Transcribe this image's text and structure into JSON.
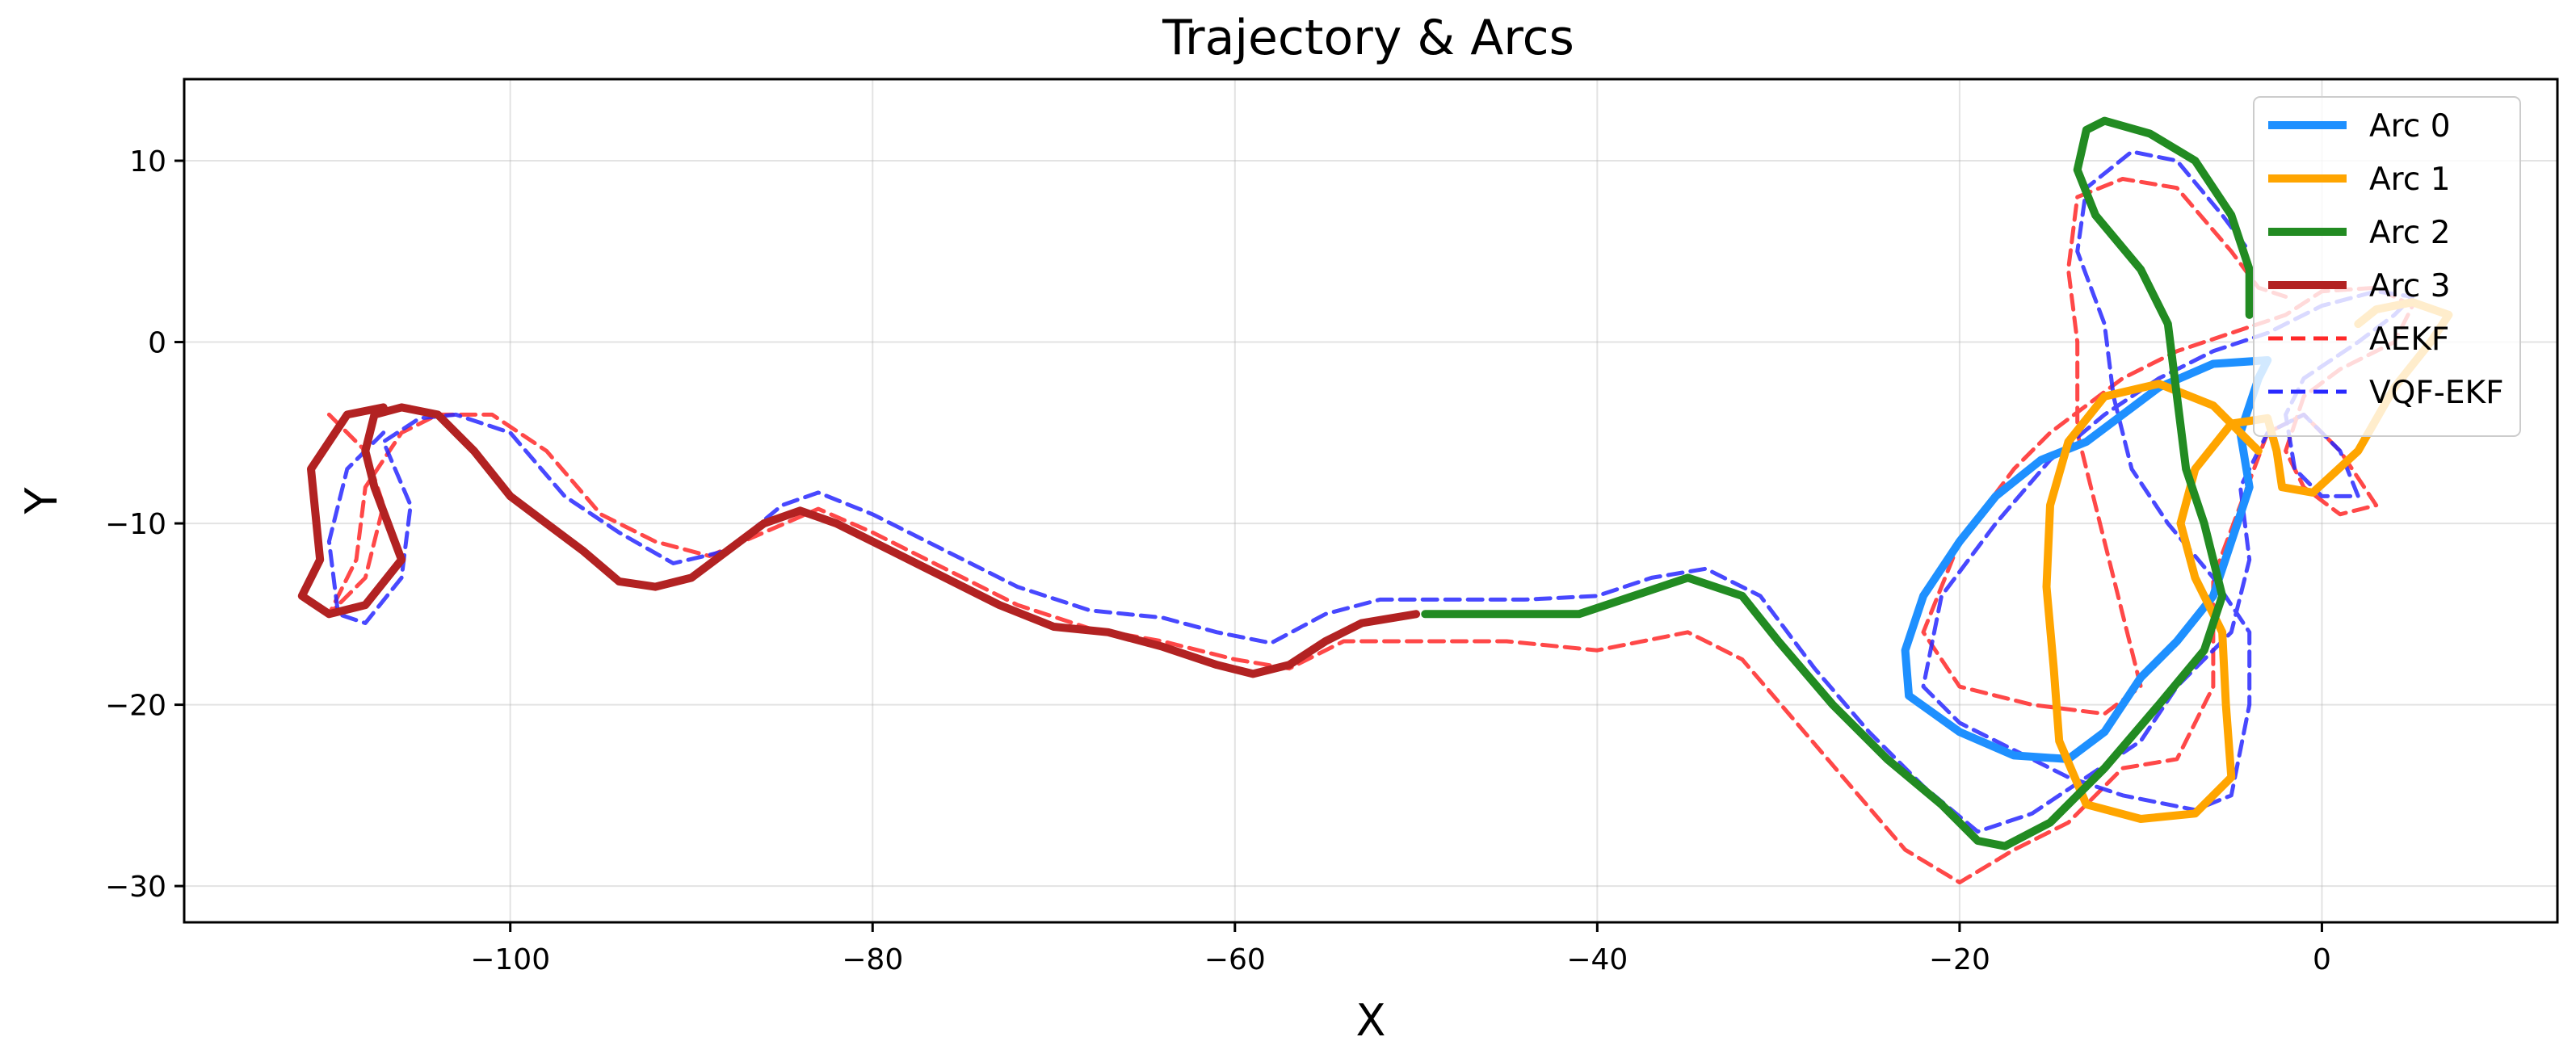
{
  "chart_data": {
    "type": "line",
    "title": "Trajectory & Arcs",
    "xlabel": "X",
    "ylabel": "Y",
    "xlim": [
      -118,
      13
    ],
    "ylim": [
      -32,
      14.5
    ],
    "grid": true,
    "legend_position": "top-right",
    "x_ticks": [
      -100,
      -80,
      -60,
      -40,
      -20,
      0
    ],
    "y_ticks": [
      10,
      0,
      -10,
      -20,
      -30
    ],
    "x_tick_labels": [
      "−100",
      "−80",
      "−60",
      "−40",
      "−20",
      "0"
    ],
    "y_tick_labels": [
      "10",
      "0",
      "−10",
      "−20",
      "−30"
    ],
    "series": [
      {
        "name": "Arc 0",
        "color": "#1e90ff",
        "style": "solid",
        "points": [
          [
            -3,
            -1
          ],
          [
            -6,
            -1.2
          ],
          [
            -9,
            -2.5
          ],
          [
            -11,
            -4
          ],
          [
            -13,
            -5.5
          ],
          [
            -15.5,
            -6.5
          ],
          [
            -18,
            -8.5
          ],
          [
            -20,
            -11
          ],
          [
            -22,
            -14
          ],
          [
            -23,
            -17
          ],
          [
            -22.8,
            -19.5
          ],
          [
            -20,
            -21.5
          ],
          [
            -17,
            -22.8
          ],
          [
            -14,
            -23
          ],
          [
            -12,
            -21.5
          ],
          [
            -10,
            -18.5
          ],
          [
            -8,
            -16.5
          ],
          [
            -6,
            -14
          ],
          [
            -5,
            -11
          ],
          [
            -4,
            -8
          ],
          [
            -4.5,
            -5
          ],
          [
            -3.5,
            -2
          ],
          [
            -3,
            -1
          ]
        ]
      },
      {
        "name": "Arc 1",
        "color": "#ffa500",
        "style": "solid",
        "points": [
          [
            -3.5,
            -6
          ],
          [
            -6,
            -3.5
          ],
          [
            -9,
            -2.3
          ],
          [
            -12,
            -3
          ],
          [
            -14,
            -5.5
          ],
          [
            -15,
            -9
          ],
          [
            -15.2,
            -13.5
          ],
          [
            -14.8,
            -18
          ],
          [
            -14.5,
            -22
          ],
          [
            -13,
            -25.5
          ],
          [
            -10,
            -26.3
          ],
          [
            -7,
            -26
          ],
          [
            -5,
            -24
          ],
          [
            -5.3,
            -20
          ],
          [
            -5.5,
            -16
          ],
          [
            -7,
            -13
          ],
          [
            -7.8,
            -10
          ],
          [
            -7,
            -7
          ],
          [
            -5,
            -4.5
          ],
          [
            -3,
            -4.2
          ],
          [
            -2.5,
            -6
          ],
          [
            -2.2,
            -8
          ],
          [
            -0.5,
            -8.3
          ],
          [
            2,
            -6
          ],
          [
            4,
            -2.5
          ],
          [
            6,
            0
          ],
          [
            7,
            1.5
          ],
          [
            5,
            2.2
          ],
          [
            3,
            1.8
          ],
          [
            2,
            1
          ]
        ]
      },
      {
        "name": "Arc 2",
        "color": "#228b22",
        "style": "solid",
        "points": [
          [
            -49.5,
            -15
          ],
          [
            -45,
            -15
          ],
          [
            -41,
            -15
          ],
          [
            -38,
            -14
          ],
          [
            -35,
            -13
          ],
          [
            -32,
            -14
          ],
          [
            -30,
            -16.5
          ],
          [
            -27,
            -20
          ],
          [
            -24,
            -23
          ],
          [
            -21,
            -25.5
          ],
          [
            -19,
            -27.5
          ],
          [
            -17.5,
            -27.8
          ],
          [
            -15,
            -26.5
          ],
          [
            -12,
            -23.5
          ],
          [
            -9,
            -20
          ],
          [
            -6.5,
            -17
          ],
          [
            -5.5,
            -14
          ],
          [
            -6.5,
            -10
          ],
          [
            -7.5,
            -7
          ],
          [
            -8,
            -3
          ],
          [
            -8.5,
            1
          ],
          [
            -10,
            4
          ],
          [
            -12.5,
            7
          ],
          [
            -13.5,
            9.5
          ],
          [
            -13,
            11.7
          ],
          [
            -12,
            12.2
          ],
          [
            -9.5,
            11.5
          ],
          [
            -7,
            10
          ],
          [
            -5,
            7
          ],
          [
            -4,
            4
          ],
          [
            -4,
            1.5
          ]
        ]
      },
      {
        "name": "Arc 3",
        "color": "#b22222",
        "style": "solid",
        "points": [
          [
            -50,
            -15
          ],
          [
            -53,
            -15.5
          ],
          [
            -55,
            -16.5
          ],
          [
            -57,
            -17.8
          ],
          [
            -59,
            -18.3
          ],
          [
            -61,
            -17.8
          ],
          [
            -64,
            -16.8
          ],
          [
            -67,
            -16
          ],
          [
            -70,
            -15.7
          ],
          [
            -73,
            -14.5
          ],
          [
            -76,
            -13
          ],
          [
            -79,
            -11.5
          ],
          [
            -82,
            -10
          ],
          [
            -84,
            -9.3
          ],
          [
            -86,
            -10
          ],
          [
            -88,
            -11.5
          ],
          [
            -90,
            -13
          ],
          [
            -92,
            -13.5
          ],
          [
            -94,
            -13.2
          ],
          [
            -96,
            -11.5
          ],
          [
            -98,
            -10
          ],
          [
            -100,
            -8.5
          ],
          [
            -102,
            -6
          ],
          [
            -104,
            -4
          ],
          [
            -106,
            -3.6
          ],
          [
            -107.5,
            -4
          ],
          [
            -108,
            -6
          ],
          [
            -107.5,
            -8
          ],
          [
            -106,
            -12
          ],
          [
            -108,
            -14.5
          ],
          [
            -110,
            -15
          ],
          [
            -111.5,
            -14
          ],
          [
            -110.5,
            -12
          ],
          [
            -111,
            -7
          ],
          [
            -109,
            -4
          ],
          [
            -107,
            -3.6
          ]
        ]
      },
      {
        "name": "AEKF",
        "color": "#ff2828",
        "style": "dashed",
        "points": [
          [
            -110,
            -4
          ],
          [
            -108,
            -6
          ],
          [
            -107,
            -9
          ],
          [
            -108,
            -13
          ],
          [
            -110,
            -15
          ],
          [
            -108.5,
            -12
          ],
          [
            -108,
            -8
          ],
          [
            -106,
            -5
          ],
          [
            -104,
            -4
          ],
          [
            -101,
            -4
          ],
          [
            -98,
            -6
          ],
          [
            -95,
            -9.5
          ],
          [
            -92,
            -11
          ],
          [
            -89,
            -11.8
          ],
          [
            -86,
            -10.5
          ],
          [
            -83,
            -9.2
          ],
          [
            -80,
            -10.5
          ],
          [
            -76,
            -12.5
          ],
          [
            -72,
            -14.5
          ],
          [
            -68,
            -15.8
          ],
          [
            -64,
            -16.5
          ],
          [
            -60,
            -17.5
          ],
          [
            -57,
            -18
          ],
          [
            -54,
            -16.5
          ],
          [
            -50,
            -16.5
          ],
          [
            -45,
            -16.5
          ],
          [
            -40,
            -17
          ],
          [
            -35,
            -16
          ],
          [
            -32,
            -17.5
          ],
          [
            -29,
            -21
          ],
          [
            -26,
            -24.5
          ],
          [
            -23,
            -28
          ],
          [
            -20,
            -29.8
          ],
          [
            -17,
            -28
          ],
          [
            -14,
            -26.5
          ],
          [
            -11,
            -23.5
          ],
          [
            -8,
            -23
          ],
          [
            -6,
            -19
          ],
          [
            -6,
            -13
          ],
          [
            -4.5,
            -9
          ],
          [
            -3,
            -5
          ],
          [
            -1,
            -4
          ],
          [
            1,
            -6
          ],
          [
            3,
            -9
          ],
          [
            1,
            -9.5
          ],
          [
            -1,
            -8
          ],
          [
            -2,
            -6
          ],
          [
            -1,
            -3
          ],
          [
            1,
            -1.5
          ],
          [
            4,
            0
          ],
          [
            5,
            2
          ],
          [
            3,
            3
          ],
          [
            0,
            2.8
          ],
          [
            -2,
            1.5
          ],
          [
            -5,
            0.5
          ],
          [
            -8,
            -0.5
          ],
          [
            -11,
            -2
          ],
          [
            -13,
            -3.5
          ],
          [
            -15,
            -5
          ],
          [
            -17,
            -7
          ],
          [
            -20,
            -11
          ],
          [
            -22,
            -16
          ],
          [
            -20,
            -19
          ],
          [
            -16,
            -20
          ],
          [
            -12,
            -20.5
          ],
          [
            -10,
            -19
          ],
          [
            -11,
            -15
          ],
          [
            -12,
            -11
          ],
          [
            -13.5,
            -5
          ],
          [
            -13.5,
            0
          ],
          [
            -14,
            4
          ],
          [
            -13.5,
            8
          ],
          [
            -11,
            9
          ],
          [
            -8,
            8.5
          ],
          [
            -5,
            5
          ],
          [
            -3.5,
            3
          ],
          [
            -2,
            2.5
          ]
        ]
      },
      {
        "name": "VQF-EKF",
        "color": "#2828ff",
        "style": "dashed",
        "points": [
          [
            -107,
            -5
          ],
          [
            -109,
            -7
          ],
          [
            -110,
            -11
          ],
          [
            -109.5,
            -15
          ],
          [
            -108,
            -15.5
          ],
          [
            -106,
            -13
          ],
          [
            -105.5,
            -9
          ],
          [
            -107,
            -5.5
          ],
          [
            -105,
            -4.2
          ],
          [
            -103,
            -4
          ],
          [
            -100,
            -5
          ],
          [
            -97,
            -8.5
          ],
          [
            -94,
            -10.5
          ],
          [
            -91,
            -12.2
          ],
          [
            -88,
            -11.5
          ],
          [
            -85,
            -9
          ],
          [
            -83,
            -8.3
          ],
          [
            -80,
            -9.5
          ],
          [
            -76,
            -11.5
          ],
          [
            -72,
            -13.5
          ],
          [
            -68,
            -14.8
          ],
          [
            -64,
            -15.2
          ],
          [
            -61,
            -16
          ],
          [
            -58,
            -16.6
          ],
          [
            -55,
            -15
          ],
          [
            -52,
            -14.2
          ],
          [
            -48,
            -14.2
          ],
          [
            -44,
            -14.2
          ],
          [
            -40,
            -14
          ],
          [
            -37,
            -13
          ],
          [
            -34,
            -12.5
          ],
          [
            -31,
            -14
          ],
          [
            -28,
            -18
          ],
          [
            -25,
            -21.5
          ],
          [
            -22,
            -24.5
          ],
          [
            -19,
            -27
          ],
          [
            -16,
            -26
          ],
          [
            -13,
            -24
          ],
          [
            -10,
            -22
          ],
          [
            -8,
            -19
          ],
          [
            -5,
            -16
          ],
          [
            -4,
            -12
          ],
          [
            -4.5,
            -8
          ],
          [
            -3,
            -5
          ],
          [
            -1,
            -4
          ],
          [
            1,
            -6
          ],
          [
            2,
            -8.5
          ],
          [
            0,
            -8.5
          ],
          [
            -1.5,
            -7
          ],
          [
            -2,
            -4
          ],
          [
            -1,
            -2
          ],
          [
            2,
            0
          ],
          [
            4,
            1.5
          ],
          [
            5,
            2.5
          ],
          [
            3,
            2.8
          ],
          [
            0,
            2
          ],
          [
            -3,
            0.5
          ],
          [
            -6,
            -0.5
          ],
          [
            -9,
            -2
          ],
          [
            -12,
            -4
          ],
          [
            -15,
            -6.5
          ],
          [
            -18,
            -10
          ],
          [
            -21,
            -14
          ],
          [
            -22,
            -19
          ],
          [
            -20,
            -21
          ],
          [
            -17,
            -22.5
          ],
          [
            -14,
            -24
          ],
          [
            -11,
            -25
          ],
          [
            -7,
            -25.8
          ],
          [
            -5,
            -25
          ],
          [
            -4,
            -20
          ],
          [
            -4,
            -16
          ],
          [
            -6,
            -13
          ],
          [
            -8.5,
            -10
          ],
          [
            -10.5,
            -7
          ],
          [
            -11.5,
            -3
          ],
          [
            -12,
            1
          ],
          [
            -13.5,
            5
          ],
          [
            -13,
            8.5
          ],
          [
            -10.5,
            10.5
          ],
          [
            -8,
            10
          ],
          [
            -5.5,
            7
          ],
          [
            -4,
            5
          ]
        ]
      }
    ]
  }
}
